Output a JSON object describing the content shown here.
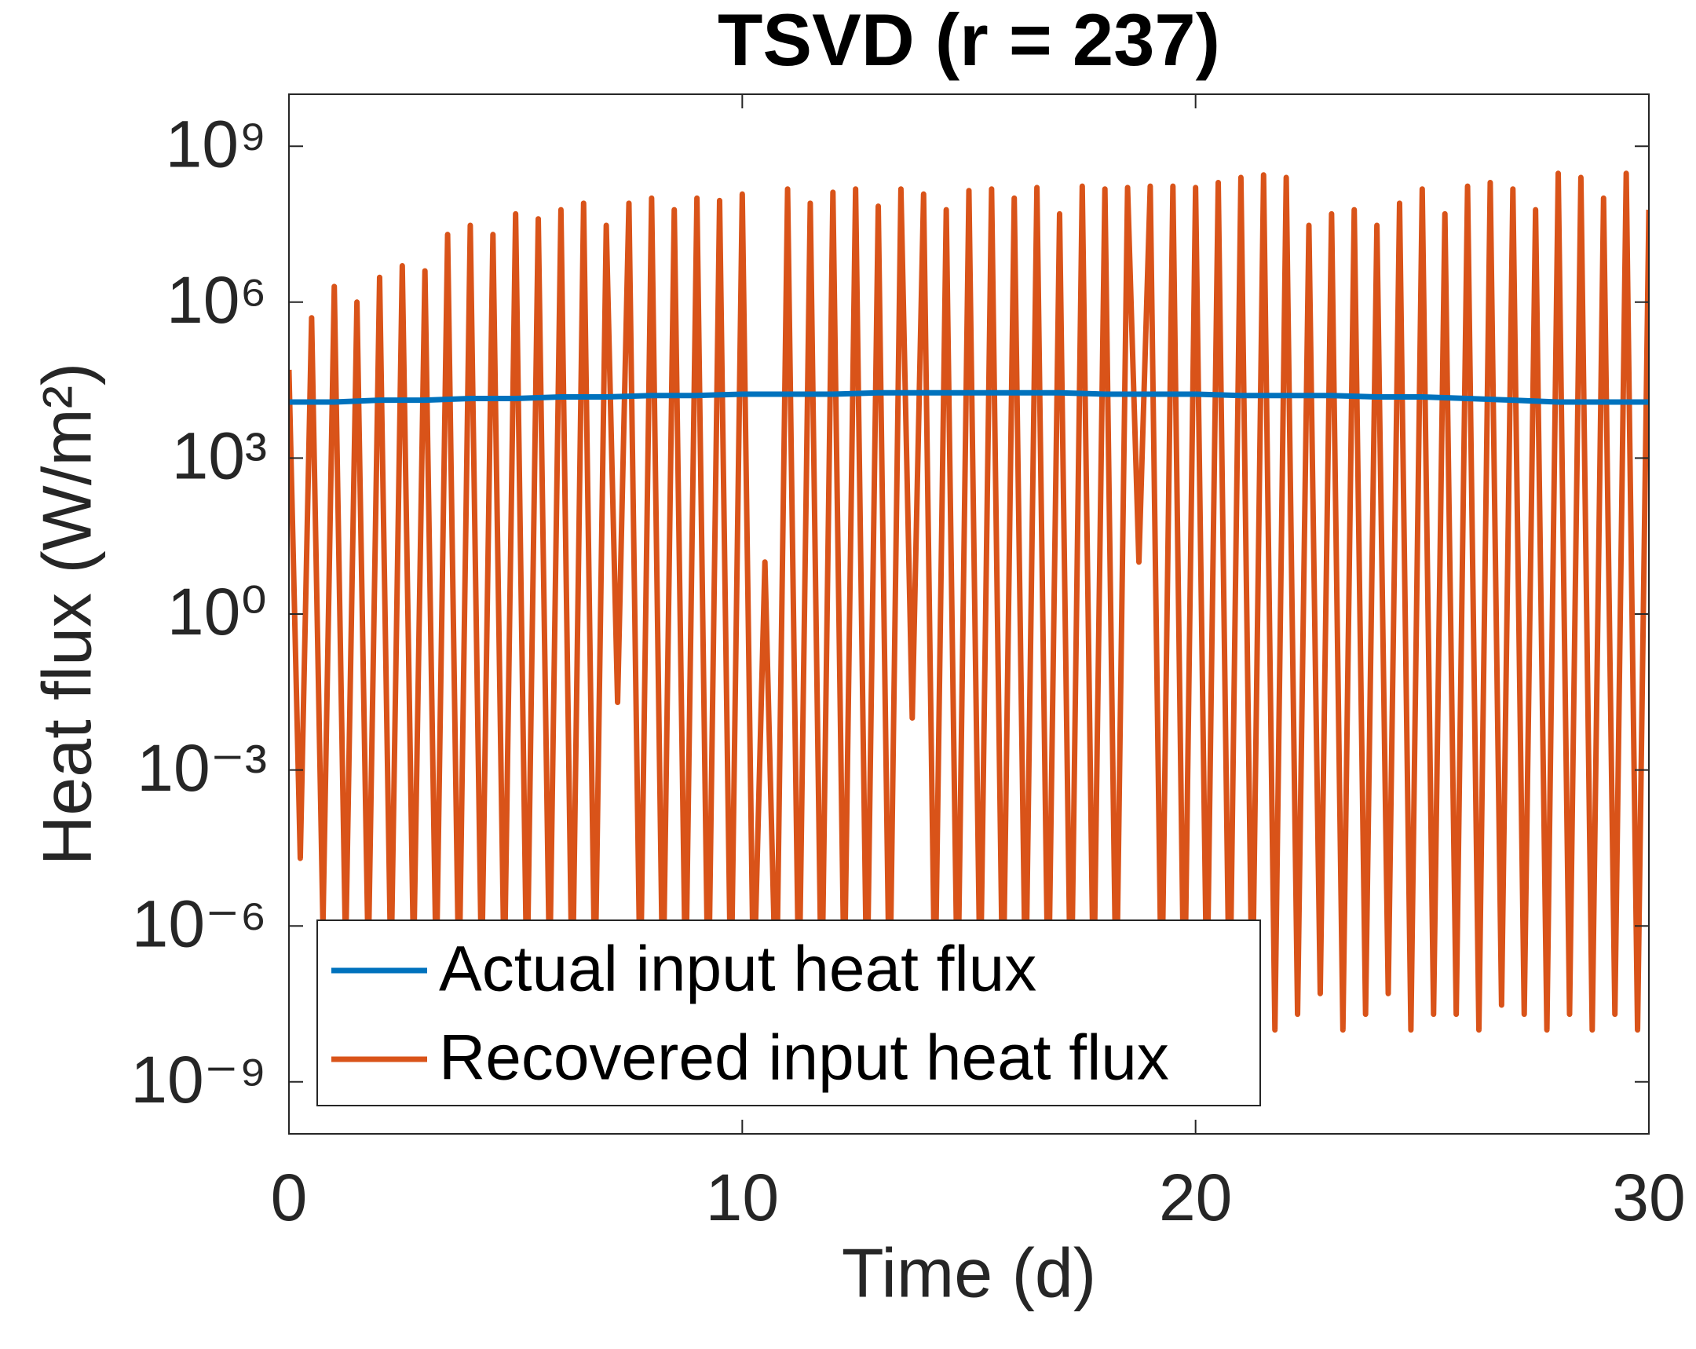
{
  "chart_data": {
    "type": "line",
    "title": "TSVD (r = 237)",
    "x_label": "Time (d)",
    "y_label": "Heat flux (W/m²)",
    "y_scale": "log",
    "xlim": [
      0,
      30
    ],
    "xticks": [
      0,
      10,
      20,
      30
    ],
    "ylim": [
      1e-10,
      10000000000.0
    ],
    "yticks": [
      {
        "value": 1e-09,
        "label": "10⁻⁹"
      },
      {
        "value": 1e-06,
        "label": "10⁻⁶"
      },
      {
        "value": 0.001,
        "label": "10⁻³"
      },
      {
        "value": 1,
        "label": "10⁰"
      },
      {
        "value": 1000.0,
        "label": "10³"
      },
      {
        "value": 1000000.0,
        "label": "10⁶"
      },
      {
        "value": 1000000000.0,
        "label": "10⁹"
      }
    ],
    "legend_position": "bottom-left",
    "series": [
      {
        "name": "Recovered input heat flux",
        "color": "#D95319",
        "x": [
          0,
          0.25,
          0.5,
          0.75,
          1,
          1.25,
          1.5,
          1.75,
          2,
          2.25,
          2.5,
          2.75,
          3,
          3.25,
          3.5,
          3.75,
          4,
          4.25,
          4.5,
          4.75,
          5,
          5.25,
          5.5,
          5.75,
          6,
          6.25,
          6.5,
          6.75,
          7,
          7.25,
          7.5,
          7.75,
          8,
          8.25,
          8.5,
          8.75,
          9,
          9.25,
          9.5,
          9.75,
          10,
          10.25,
          10.5,
          10.75,
          11,
          11.25,
          11.5,
          11.75,
          12,
          12.25,
          12.5,
          12.75,
          13,
          13.25,
          13.5,
          13.75,
          14,
          14.25,
          14.5,
          14.75,
          15,
          15.25,
          15.5,
          15.75,
          16,
          16.25,
          16.5,
          16.75,
          17,
          17.25,
          17.5,
          17.75,
          18,
          18.25,
          18.5,
          18.75,
          19,
          19.25,
          19.5,
          19.75,
          20,
          20.25,
          20.5,
          20.75,
          21,
          21.25,
          21.5,
          21.75,
          22,
          22.25,
          22.5,
          22.75,
          23,
          23.25,
          23.5,
          23.75,
          24,
          24.25,
          24.5,
          24.75,
          25,
          25.25,
          25.5,
          25.75,
          26,
          26.25,
          26.5,
          26.75,
          27,
          27.25,
          27.5,
          27.75,
          28,
          28.25,
          28.5,
          28.75,
          29,
          29.25,
          29.5,
          29.75,
          30
        ],
        "values": [
          50000.0,
          2e-05,
          500000.0,
          1e-06,
          2000000.0,
          3e-07,
          1000000.0,
          2e-07,
          3000000.0,
          1e-07,
          5000000.0,
          2e-07,
          4000000.0,
          1e-07,
          20000000.0,
          5e-08,
          30000000.0,
          1e-07,
          20000000.0,
          8e-08,
          50000000.0,
          5e-08,
          40000000.0,
          1e-07,
          60000000.0,
          3e-08,
          80000000.0,
          5e-08,
          30000000.0,
          0.02,
          80000000.0,
          4e-08,
          100000000.0,
          3e-08,
          60000000.0,
          5e-08,
          100000000.0,
          2e-08,
          90000000.0,
          3e-08,
          120000000.0,
          4e-08,
          10.0,
          2e-08,
          150000000.0,
          3e-08,
          80000000.0,
          2e-08,
          130000000.0,
          5e-08,
          150000000.0,
          3e-08,
          70000000.0,
          2e-08,
          150000000.0,
          0.01,
          120000000.0,
          3e-08,
          60000000.0,
          2e-08,
          140000000.0,
          4e-08,
          150000000.0,
          2e-08,
          100000000.0,
          3e-08,
          160000000.0,
          2e-08,
          50000000.0,
          1e-08,
          170000000.0,
          3e-08,
          150000000.0,
          2e-08,
          160000000.0,
          10.0,
          170000000.0,
          2e-08,
          170000000.0,
          1e-08,
          160000000.0,
          3e-08,
          200000000.0,
          1e-08,
          250000000.0,
          2e-08,
          280000000.0,
          1e-08,
          250000000.0,
          2e-08,
          30000000.0,
          5e-08,
          50000000.0,
          1e-08,
          60000000.0,
          2e-08,
          30000000.0,
          5e-08,
          80000000.0,
          1e-08,
          150000000.0,
          2e-08,
          50000000.0,
          2e-08,
          170000000.0,
          1e-08,
          200000000.0,
          3e-08,
          150000000.0,
          2e-08,
          60000000.0,
          1e-08,
          300000000.0,
          2e-08,
          250000000.0,
          1e-08,
          100000000.0,
          2e-08,
          300000000.0,
          1e-08,
          60000000.0
        ]
      },
      {
        "name": "Actual input heat flux",
        "color": "#0072BD",
        "x": [
          0,
          1,
          2,
          3,
          4,
          5,
          6,
          7,
          8,
          9,
          10,
          11,
          12,
          13,
          14,
          15,
          16,
          17,
          18,
          19,
          20,
          21,
          22,
          23,
          24,
          25,
          26,
          27,
          28,
          29,
          30
        ],
        "values": [
          12000.0,
          12000.0,
          13000.0,
          13000.0,
          14000.0,
          14000.0,
          15000.0,
          15000.0,
          16000.0,
          16000.0,
          17000.0,
          17000.0,
          17000.0,
          18000.0,
          18000.0,
          18000.0,
          18000.0,
          18000.0,
          17000.0,
          17000.0,
          17000.0,
          16000.0,
          16000.0,
          16000.0,
          15000.0,
          15000.0,
          14000.0,
          13000.0,
          12000.0,
          12000.0,
          12000.0
        ]
      }
    ]
  }
}
